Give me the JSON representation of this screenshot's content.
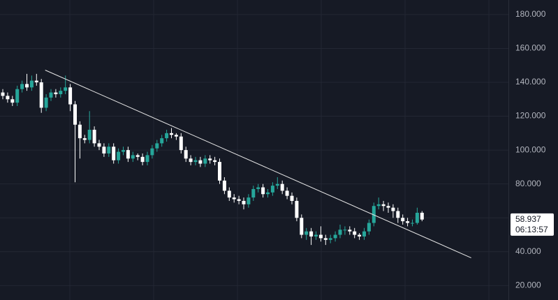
{
  "chart_data": {
    "type": "candlestick",
    "open": [
      134,
      132,
      130,
      128,
      136,
      139,
      137,
      141,
      140,
      125,
      131,
      134,
      133,
      135,
      137,
      127,
      115,
      107,
      106,
      112,
      104,
      102,
      98,
      102,
      94,
      99,
      100,
      95,
      97,
      96,
      93,
      97,
      101,
      104,
      107,
      110,
      109,
      108,
      100,
      95,
      93,
      94,
      92,
      95,
      94,
      93,
      82,
      76,
      72,
      71,
      70,
      68,
      72,
      77,
      78,
      74,
      75,
      79,
      80,
      76,
      73,
      70,
      60,
      50,
      52,
      49,
      50,
      48,
      47,
      48,
      50,
      53,
      53,
      52,
      50,
      49,
      52,
      57,
      67,
      68,
      67,
      66,
      64,
      60,
      58,
      57,
      57,
      63
    ],
    "high": [
      136,
      134,
      132,
      138,
      141,
      145,
      144,
      145,
      142,
      133,
      136,
      136,
      137,
      144,
      139,
      129,
      117,
      109,
      123,
      114,
      106,
      104,
      104,
      104,
      101,
      102,
      102,
      99,
      98,
      98,
      99,
      103,
      106,
      109,
      112,
      113,
      110,
      110,
      102,
      97,
      96,
      96,
      97,
      97,
      96,
      95,
      84,
      78,
      74,
      73,
      72,
      74,
      79,
      80,
      80,
      77,
      81,
      84,
      82,
      78,
      75,
      72,
      62,
      54,
      54,
      52,
      55,
      50,
      50,
      52,
      56,
      55,
      55,
      54,
      51,
      54,
      59,
      69,
      72,
      70,
      69,
      68,
      66,
      62,
      60,
      59,
      66,
      64
    ],
    "low": [
      130,
      128,
      126,
      126,
      134,
      135,
      135,
      138,
      122,
      123,
      129,
      131,
      131,
      133,
      123,
      81,
      95,
      104,
      104,
      102,
      100,
      96,
      96,
      92,
      92,
      97,
      93,
      93,
      94,
      91,
      91,
      95,
      99,
      102,
      105,
      107,
      106,
      98,
      93,
      91,
      91,
      90,
      90,
      92,
      91,
      80,
      74,
      70,
      69,
      68,
      65,
      66,
      70,
      75,
      72,
      72,
      73,
      77,
      74,
      71,
      68,
      58,
      48,
      47,
      44,
      47,
      46,
      44,
      45,
      46,
      48,
      50,
      50,
      48,
      47,
      47,
      50,
      55,
      65,
      64,
      63,
      60,
      57,
      56,
      55,
      55,
      56,
      58
    ],
    "close": [
      132,
      130,
      128,
      136,
      139,
      137,
      141,
      140,
      125,
      131,
      134,
      133,
      135,
      137,
      127,
      115,
      107,
      106,
      112,
      104,
      102,
      98,
      102,
      94,
      99,
      100,
      95,
      97,
      96,
      93,
      97,
      101,
      104,
      107,
      110,
      109,
      108,
      100,
      95,
      93,
      94,
      92,
      95,
      94,
      93,
      82,
      76,
      72,
      71,
      70,
      68,
      72,
      77,
      78,
      74,
      75,
      79,
      80,
      76,
      73,
      70,
      60,
      50,
      52,
      49,
      50,
      48,
      47,
      48,
      50,
      53,
      53,
      52,
      50,
      49,
      52,
      57,
      67,
      68,
      67,
      66,
      64,
      60,
      58,
      57,
      57,
      63,
      59
    ],
    "up_color": "#26a69a",
    "down_color": "#ffffff",
    "ylim": [
      11.5,
      188.6
    ],
    "yticks": [
      {
        "value": 20,
        "label": "20.000"
      },
      {
        "value": 40,
        "label": "40.000"
      },
      {
        "value": 60,
        "label": "60.000"
      },
      {
        "value": 80,
        "label": "80.000"
      },
      {
        "value": 100,
        "label": "100.000"
      },
      {
        "value": 120,
        "label": "120.000"
      },
      {
        "value": 140,
        "label": "140.000"
      },
      {
        "value": 160,
        "label": "160.000"
      },
      {
        "value": 180,
        "label": "180.000"
      }
    ],
    "grid": true,
    "trendline": {
      "x": [
        8.8,
        97.2
      ],
      "y": [
        147.2,
        36.4
      ],
      "color": "#e8e8e8"
    },
    "last_price": 58.937,
    "countdown": "06:13:57"
  }
}
